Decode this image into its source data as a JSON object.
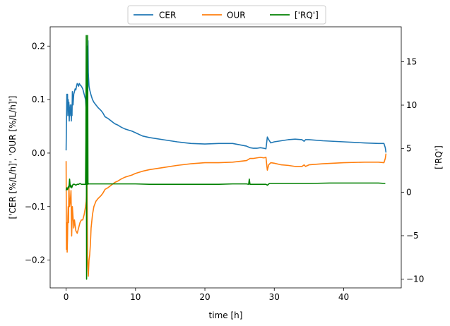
{
  "chart_data": {
    "type": "line",
    "xlabel": "time [h]",
    "ylabel_left": "['CER [%/L/h]', 'OUR [%/L/h]']",
    "ylabel_right": "['RQ']",
    "xlim": [
      -2.3,
      48.3
    ],
    "ylim_left": [
      -0.252,
      0.236
    ],
    "ylim_right": [
      -11.0,
      19.0
    ],
    "x_ticks": [
      0,
      10,
      20,
      30,
      40
    ],
    "y_left_ticks": [
      -0.2,
      -0.1,
      0.0,
      0.1,
      0.2
    ],
    "y_left_tick_labels": [
      "−0.2",
      "−0.1",
      "0.0",
      "0.1",
      "0.2"
    ],
    "y_right_ticks": [
      -10,
      -5,
      0,
      5,
      10,
      15
    ],
    "y_right_tick_labels": [
      "−10",
      "−5",
      "0",
      "5",
      "10",
      "15"
    ],
    "grid": false,
    "legend_placement": "top-center, above plot",
    "series": [
      {
        "name": "CER",
        "axis": "left",
        "color": "#1f77b4",
        "x": [
          0.0,
          0.1,
          0.15,
          0.2,
          0.25,
          0.3,
          0.35,
          0.4,
          0.45,
          0.5,
          0.55,
          0.6,
          0.65,
          0.7,
          0.75,
          0.8,
          0.85,
          0.9,
          1.0,
          1.1,
          1.2,
          1.3,
          1.4,
          1.5,
          1.6,
          1.7,
          1.8,
          1.9,
          2.0,
          2.1,
          2.2,
          2.4,
          2.6,
          2.8,
          2.9,
          3.0,
          3.05,
          3.1,
          3.15,
          3.2,
          3.3,
          3.4,
          3.5,
          3.6,
          3.8,
          4.0,
          4.3,
          4.6,
          5.0,
          5.3,
          5.6,
          6.0,
          6.5,
          7.0,
          7.5,
          8.0,
          8.5,
          9.0,
          9.5,
          10.0,
          11.0,
          12.0,
          14.0,
          16.0,
          18.0,
          20.0,
          22.0,
          24.0,
          26.0,
          26.5,
          27.0,
          27.5,
          28.0,
          28.5,
          28.8,
          29.0,
          29.2,
          29.5,
          30.0,
          31.0,
          32.0,
          33.0,
          34.0,
          34.3,
          34.5,
          35.0,
          37.0,
          40.0,
          43.0,
          45.0,
          45.8,
          46.0,
          46.1
        ],
        "y": [
          0.005,
          0.11,
          0.085,
          0.11,
          0.07,
          0.1,
          0.08,
          0.095,
          0.06,
          0.085,
          0.075,
          0.09,
          0.07,
          0.08,
          0.06,
          0.09,
          0.07,
          0.115,
          0.09,
          0.11,
          0.115,
          0.12,
          0.118,
          0.125,
          0.13,
          0.128,
          0.125,
          0.13,
          0.128,
          0.126,
          0.125,
          0.12,
          0.11,
          0.1,
          0.08,
          0.0,
          0.2,
          0.05,
          0.21,
          0.15,
          0.125,
          0.118,
          0.113,
          0.108,
          0.1,
          0.095,
          0.09,
          0.085,
          0.08,
          0.075,
          0.068,
          0.065,
          0.06,
          0.055,
          0.052,
          0.048,
          0.045,
          0.043,
          0.041,
          0.038,
          0.032,
          0.029,
          0.025,
          0.021,
          0.018,
          0.017,
          0.018,
          0.018,
          0.013,
          0.01,
          0.009,
          0.009,
          0.01,
          0.009,
          0.008,
          0.03,
          0.025,
          0.019,
          0.021,
          0.023,
          0.025,
          0.026,
          0.025,
          0.022,
          0.025,
          0.025,
          0.023,
          0.021,
          0.019,
          0.018,
          0.018,
          0.01,
          0.001
        ]
      },
      {
        "name": "OUR",
        "axis": "left",
        "color": "#ff7f0e",
        "x": [
          0.0,
          0.05,
          0.1,
          0.15,
          0.2,
          0.25,
          0.3,
          0.35,
          0.4,
          0.5,
          0.6,
          0.7,
          0.8,
          0.9,
          1.0,
          1.1,
          1.2,
          1.4,
          1.6,
          1.8,
          2.0,
          2.2,
          2.4,
          2.6,
          2.8,
          2.9,
          3.0,
          3.1,
          3.2,
          3.3,
          3.4,
          3.5,
          3.6,
          3.8,
          4.0,
          4.3,
          4.6,
          5.0,
          5.3,
          5.6,
          6.0,
          6.5,
          7.0,
          7.5,
          8.0,
          8.5,
          9.0,
          9.5,
          10.0,
          11.0,
          12.0,
          14.0,
          16.0,
          18.0,
          20.0,
          22.0,
          24.0,
          26.0,
          26.5,
          27.0,
          27.5,
          28.0,
          28.5,
          28.8,
          29.0,
          29.2,
          29.5,
          30.0,
          31.0,
          32.0,
          33.0,
          34.0,
          34.3,
          34.5,
          35.0,
          37.0,
          40.0,
          43.0,
          45.0,
          45.8,
          46.0,
          46.1
        ],
        "y": [
          -0.015,
          -0.18,
          -0.13,
          -0.185,
          -0.16,
          -0.12,
          -0.1,
          -0.13,
          -0.06,
          -0.1,
          -0.09,
          -0.07,
          -0.155,
          -0.1,
          -0.12,
          -0.14,
          -0.125,
          -0.145,
          -0.15,
          -0.14,
          -0.13,
          -0.125,
          -0.125,
          -0.115,
          -0.1,
          -0.09,
          -0.05,
          -0.2,
          -0.23,
          -0.2,
          -0.19,
          -0.17,
          -0.14,
          -0.115,
          -0.1,
          -0.09,
          -0.085,
          -0.08,
          -0.075,
          -0.068,
          -0.065,
          -0.06,
          -0.055,
          -0.052,
          -0.048,
          -0.045,
          -0.043,
          -0.041,
          -0.038,
          -0.034,
          -0.031,
          -0.027,
          -0.023,
          -0.02,
          -0.018,
          -0.018,
          -0.017,
          -0.014,
          -0.01,
          -0.01,
          -0.009,
          -0.008,
          -0.009,
          -0.008,
          -0.032,
          -0.022,
          -0.018,
          -0.019,
          -0.022,
          -0.023,
          -0.025,
          -0.025,
          -0.022,
          -0.025,
          -0.022,
          -0.02,
          -0.018,
          -0.017,
          -0.017,
          -0.018,
          -0.01,
          -0.001
        ]
      },
      {
        "name": "['RQ']",
        "axis": "right",
        "color": "#008000",
        "x": [
          0.0,
          0.1,
          0.2,
          0.3,
          0.4,
          0.5,
          0.6,
          0.7,
          0.8,
          0.9,
          1.0,
          1.2,
          1.4,
          1.6,
          1.8,
          2.0,
          2.2,
          2.4,
          2.6,
          2.8,
          2.85,
          2.9,
          2.95,
          3.0,
          3.05,
          3.1,
          3.15,
          3.2,
          3.3,
          3.5,
          4.0,
          5.0,
          6.0,
          8.0,
          10.0,
          12.0,
          15.0,
          18.0,
          20.0,
          22.0,
          24.0,
          26.0,
          26.3,
          26.4,
          26.5,
          27.0,
          28.0,
          28.8,
          29.0,
          29.3,
          30.0,
          32.0,
          35.0,
          38.0,
          40.0,
          43.0,
          45.0,
          46.0
        ],
        "y": [
          0.2,
          0.5,
          0.3,
          0.6,
          0.5,
          1.5,
          0.6,
          0.8,
          0.5,
          0.7,
          0.9,
          0.9,
          0.8,
          0.9,
          0.9,
          1.0,
          0.9,
          0.9,
          0.9,
          0.9,
          6.0,
          18.0,
          -10.0,
          10.0,
          1.0,
          18.0,
          0.9,
          1.0,
          0.95,
          0.95,
          0.95,
          0.95,
          0.95,
          0.95,
          0.95,
          0.9,
          0.9,
          0.9,
          0.9,
          0.9,
          0.95,
          0.95,
          0.9,
          1.5,
          0.9,
          0.9,
          0.9,
          0.9,
          0.8,
          1.0,
          1.0,
          1.0,
          1.0,
          1.05,
          1.05,
          1.05,
          1.05,
          1.0
        ]
      }
    ]
  }
}
